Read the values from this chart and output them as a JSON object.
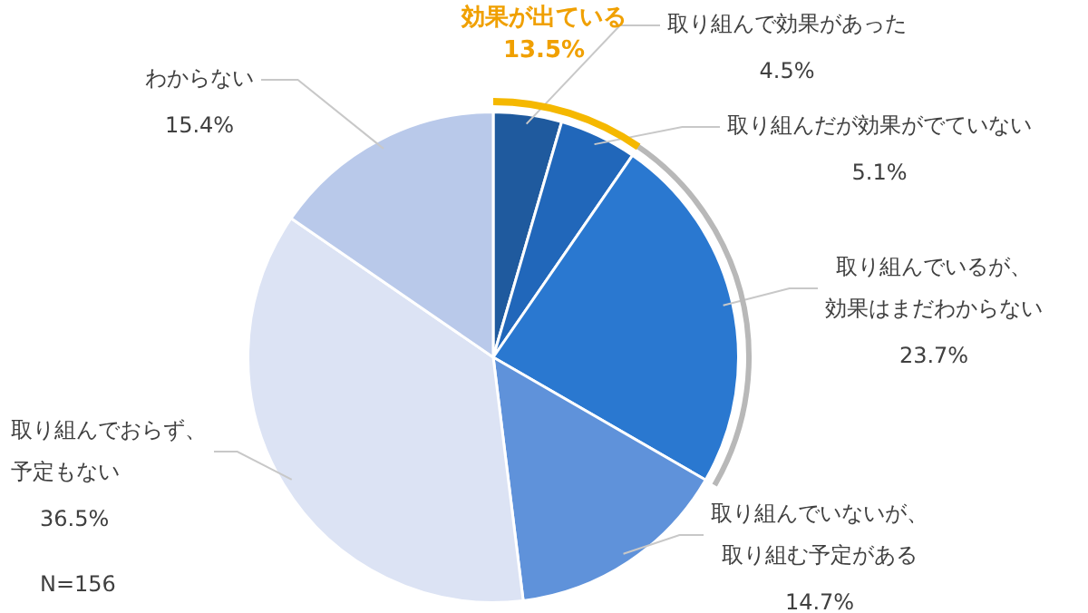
{
  "chart_data": {
    "type": "pie",
    "categories": [
      "取り組んで効果があった",
      "取り組んだが効果がでていない",
      "取り組んでいるが、効果はまだわからない",
      "取り組んでいないが、取り組む予定がある",
      "取り組んでおらず、予定もない",
      "わからない"
    ],
    "values": [
      4.5,
      5.1,
      23.7,
      14.7,
      36.5,
      15.4
    ],
    "value_labels": [
      "4.5%",
      "5.1%",
      "23.7%",
      "14.7%",
      "36.5%",
      "15.4%"
    ],
    "colors": [
      "#1f5a9e",
      "#2167ba",
      "#2a78d0",
      "#5f92da",
      "#dce3f4",
      "#b9c9ea"
    ],
    "annotations": [
      "効果が出ている",
      "13.5%",
      "N=156"
    ],
    "legend": false
  }
}
